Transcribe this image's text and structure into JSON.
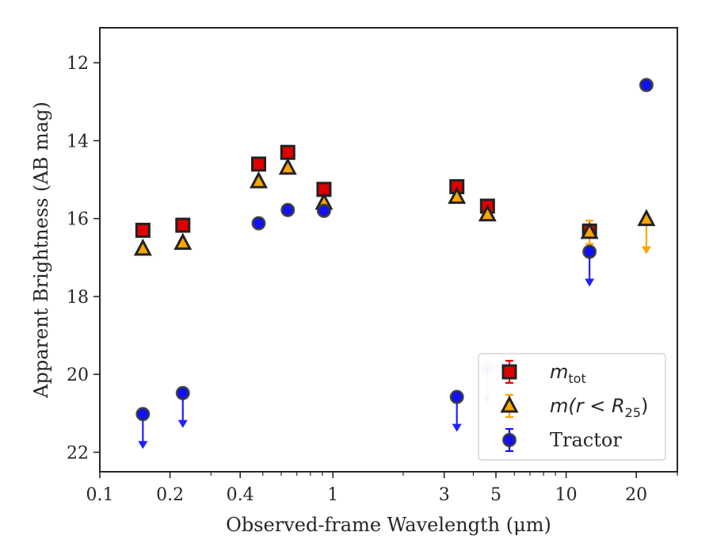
{
  "chart_data": {
    "type": "scatter",
    "title": "",
    "xlabel": "Observed-frame Wavelength (μm)",
    "ylabel": "Apparent Brightness (AB mag)",
    "xscale": "log",
    "xlim": [
      0.1,
      30
    ],
    "ylim": [
      22.5,
      11.1
    ],
    "y_inverted": true,
    "xticks": [
      {
        "value": 0.1,
        "label": "0.1"
      },
      {
        "value": 0.2,
        "label": "0.2"
      },
      {
        "value": 0.4,
        "label": "0.4"
      },
      {
        "value": 1,
        "label": "1"
      },
      {
        "value": 3,
        "label": "3"
      },
      {
        "value": 5,
        "label": "5"
      },
      {
        "value": 10,
        "label": "10"
      },
      {
        "value": 20,
        "label": "20"
      }
    ],
    "yticks": [
      {
        "value": 12,
        "label": "12"
      },
      {
        "value": 14,
        "label": "14"
      },
      {
        "value": 16,
        "label": "16"
      },
      {
        "value": 18,
        "label": "18"
      },
      {
        "value": 20,
        "label": "20"
      },
      {
        "value": 22,
        "label": "22"
      }
    ],
    "grid": false,
    "legend_position": "lower-right",
    "legend": [
      {
        "label": "m",
        "sub": "tot",
        "marker": "square"
      },
      {
        "label": "m(r < R",
        "sub": "25",
        "suffix": ")",
        "marker": "triangle"
      },
      {
        "label": "Tractor",
        "marker": "circle"
      }
    ],
    "series": [
      {
        "name": "m_tot",
        "marker": "square",
        "color": "#e00000",
        "edge": "#222222",
        "points": [
          {
            "x": 0.153,
            "y": 16.3
          },
          {
            "x": 0.227,
            "y": 16.17
          },
          {
            "x": 0.48,
            "y": 14.6
          },
          {
            "x": 0.64,
            "y": 14.3
          },
          {
            "x": 0.915,
            "y": 15.25
          },
          {
            "x": 3.4,
            "y": 15.18
          },
          {
            "x": 4.6,
            "y": 15.68
          },
          {
            "x": 12.6,
            "y": 16.32,
            "yerr": 0.15
          }
        ]
      },
      {
        "name": "m(r < R25)",
        "marker": "triangle",
        "color": "#ffa500",
        "edge": "#222222",
        "points": [
          {
            "x": 0.153,
            "y": 16.78
          },
          {
            "x": 0.227,
            "y": 16.63
          },
          {
            "x": 0.48,
            "y": 15.05
          },
          {
            "x": 0.64,
            "y": 14.7
          },
          {
            "x": 0.915,
            "y": 15.6
          },
          {
            "x": 3.4,
            "y": 15.45
          },
          {
            "x": 4.6,
            "y": 15.9
          },
          {
            "x": 12.6,
            "y": 16.35,
            "yerr": 0.3
          },
          {
            "x": 22.1,
            "y": 16.02,
            "upper_limit": true
          }
        ]
      },
      {
        "name": "Tractor",
        "marker": "circle",
        "color": "#1010ff",
        "edge": "#333333",
        "points": [
          {
            "x": 0.153,
            "y": 21.02,
            "upper_limit": true
          },
          {
            "x": 0.227,
            "y": 20.48,
            "upper_limit": true
          },
          {
            "x": 0.48,
            "y": 16.12
          },
          {
            "x": 0.64,
            "y": 15.78
          },
          {
            "x": 0.915,
            "y": 15.8
          },
          {
            "x": 3.4,
            "y": 20.58,
            "upper_limit": true
          },
          {
            "x": 4.6,
            "y": 19.85,
            "upper_limit": true,
            "faded": true
          },
          {
            "x": 12.6,
            "y": 16.85,
            "upper_limit": true
          },
          {
            "x": 22.1,
            "y": 12.57
          }
        ]
      }
    ]
  }
}
